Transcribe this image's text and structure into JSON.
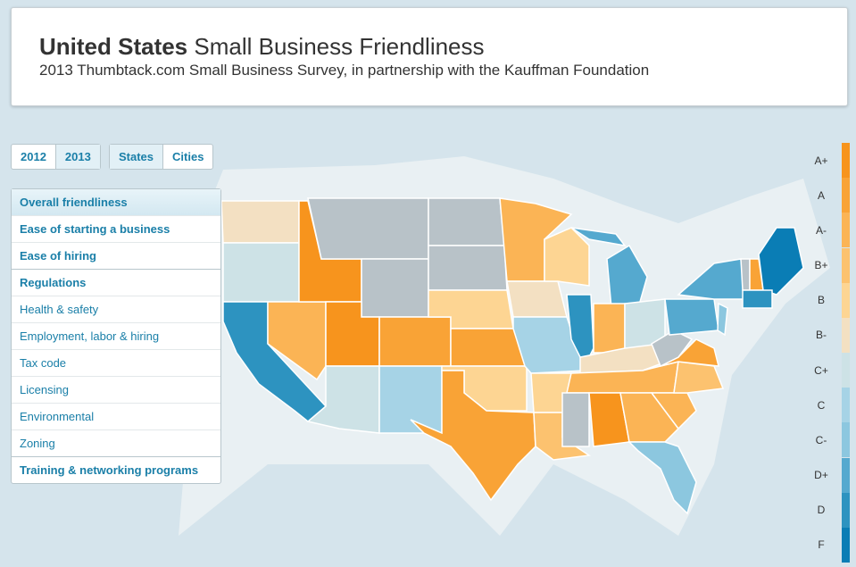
{
  "header": {
    "title_bold": "United States",
    "title_rest": "Small Business Friendliness",
    "subtitle": "2013 Thumbtack.com Small Business Survey, in partnership with the Kauffman Foundation"
  },
  "year_toggle": [
    "2012",
    "2013"
  ],
  "view_toggle": [
    "States",
    "Cities"
  ],
  "menu": [
    "Overall friendliness",
    "Ease of starting a business",
    "Ease of hiring",
    "Regulations",
    "Health & safety",
    "Employment, labor & hiring",
    "Tax code",
    "Licensing",
    "Environmental",
    "Zoning",
    "Training & networking programs"
  ],
  "legend": [
    {
      "label": "A+",
      "color": "#f7941d"
    },
    {
      "label": "A",
      "color": "#f9a336"
    },
    {
      "label": "A-",
      "color": "#fbb455"
    },
    {
      "label": "B+",
      "color": "#fcc26f"
    },
    {
      "label": "B",
      "color": "#fdd593"
    },
    {
      "label": "B-",
      "color": "#f3e0c2"
    },
    {
      "label": "C+",
      "color": "#cde2e6"
    },
    {
      "label": "C",
      "color": "#a6d3e6"
    },
    {
      "label": "C-",
      "color": "#8cc7df"
    },
    {
      "label": "D+",
      "color": "#55a9cf"
    },
    {
      "label": "D",
      "color": "#2d93c0"
    },
    {
      "label": "F",
      "color": "#0a7db5"
    }
  ]
}
